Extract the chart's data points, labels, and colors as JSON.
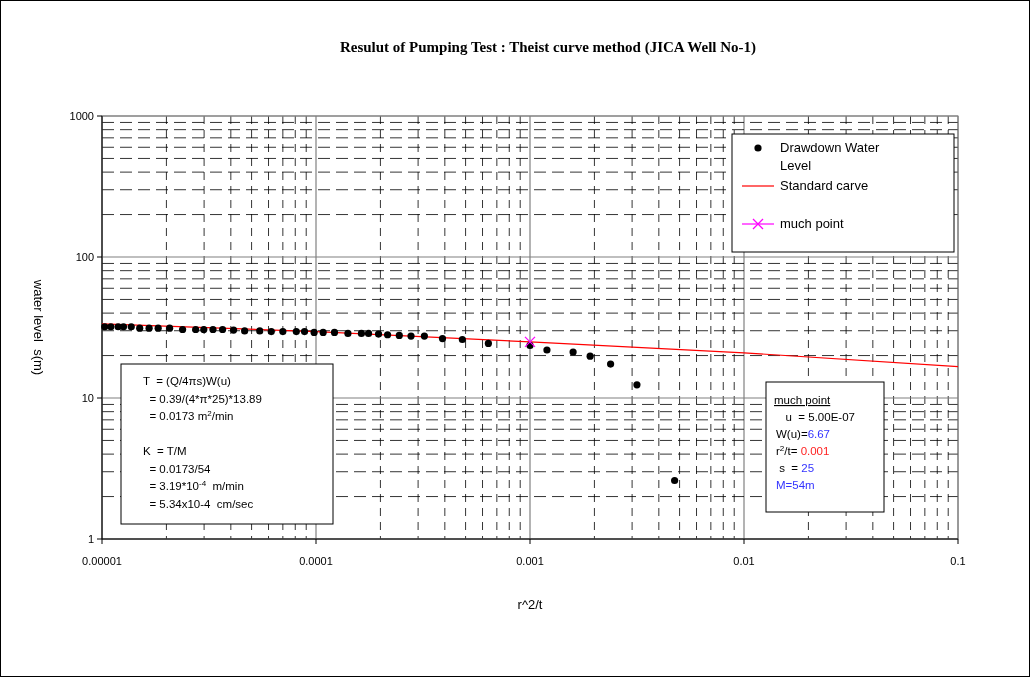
{
  "chart_data": {
    "type": "scatter",
    "title": "Resulut of Pumping Test : Theist curve method (JICA Well No-1)",
    "xlabel": "r^2/t",
    "ylabel": "water level  s(m)",
    "log": "xy",
    "grid": true,
    "legend": "top right",
    "xlim": [
      1e-05,
      0.1
    ],
    "ylim": [
      1,
      1000
    ],
    "xticks": [
      {
        "value": 1e-05,
        "label": "0.00001"
      },
      0.0001,
      0.001,
      0.01,
      0.1
    ],
    "yticks": [
      1,
      10,
      100,
      1000
    ],
    "series": [
      {
        "name": "Drawdown Water Level",
        "type": "scatter",
        "marker": "circle",
        "color": "#000000",
        "x": [
          1.03e-05,
          1.1e-05,
          1.19e-05,
          1.26e-05,
          1.37e-05,
          1.5e-05,
          1.66e-05,
          1.83e-05,
          2.07e-05,
          2.38e-05,
          2.74e-05,
          2.99e-05,
          3.3e-05,
          3.66e-05,
          4.12e-05,
          4.64e-05,
          5.46e-05,
          6.18e-05,
          7e-05,
          8.09e-05,
          8.84e-05,
          9.8e-05,
          0.000108,
          0.000122,
          0.000141,
          0.000163,
          0.000176,
          0.000196,
          0.000216,
          0.000245,
          0.000278,
          0.000321,
          0.00039,
          0.000483,
          0.000639,
          0.001,
          0.0012,
          0.00159,
          0.00191,
          0.00238,
          0.00316,
          0.00474
        ],
        "values": [
          32,
          32,
          32,
          32,
          32,
          31.3,
          31.3,
          31.3,
          31.3,
          30.6,
          30.6,
          30.6,
          30.6,
          30.6,
          30.3,
          29.9,
          29.9,
          29.6,
          29.6,
          29.6,
          29.6,
          29.2,
          29.2,
          29.2,
          28.7,
          28.7,
          28.7,
          28.4,
          28.1,
          27.8,
          27.5,
          27.5,
          26.4,
          26,
          24.4,
          23.6,
          21.9,
          21.2,
          19.8,
          17.4,
          12.4,
          2.6
        ]
      },
      {
        "name": "Standard carve",
        "type": "line",
        "marker": "none",
        "line_style": "solid",
        "color": "#ff0000",
        "x": [
          1e-05,
          0.0001,
          0.001,
          0.01,
          0.1
        ],
        "values": [
          33.5,
          29.6,
          25,
          20.9,
          16.7
        ]
      },
      {
        "name": "much point",
        "type": "scatter",
        "marker": "cross",
        "color": "#ff00ff",
        "x": [
          0.001
        ],
        "values": [
          25
        ]
      }
    ],
    "annotations": [
      "T  = (Q/4πs)W(u)\n  = 0.39/(4*π*25)*13.89\n  = 0.0173 m$^{2}$/min\n\nK  = T/M\n  = 0.0173/54\n  = 3.19*10$^{-4}$  m/min\n  = 5.34x10-4  cm/sec",
      "much point\n   u  = 5.00E-07\nW(u)=6.67\nr$^{2}$/t= 0.001\n s  = 25\nM=54m"
    ]
  }
}
